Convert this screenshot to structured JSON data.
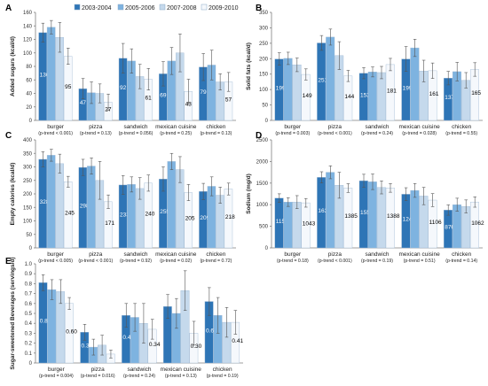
{
  "legend": [
    "2003-2004",
    "2005-2006",
    "2007-2008",
    "2009-2010"
  ],
  "colors": [
    "#2e75b6",
    "#7eb3e0",
    "#c5d9ec",
    "#f5f8fc"
  ],
  "bar_label_colors": [
    "#ffffff",
    "#ffffff",
    "#000000",
    "#000000"
  ],
  "chart_data": [
    {
      "type": "bar",
      "panel": "A",
      "ylabel": "Added sugars (kcal/d)",
      "ylim": [
        0,
        160
      ],
      "yticks": [
        "0",
        "20",
        "40",
        "60",
        "80",
        "100",
        "120",
        "140",
        "160"
      ],
      "categories": [
        "burger",
        "pizza",
        "sandwich",
        "mexican cuisine",
        "chicken"
      ],
      "trends": [
        "(p-trend < 0.001)",
        "(p-trend = 0.13)",
        "(p-trend = 0.056)",
        "(p-trend = 0.25)",
        "(p-trend = 0.13)"
      ],
      "series": [
        {
          "name": "2003-2004",
          "values": [
            130,
            47,
            92,
            69,
            79
          ],
          "err": [
            14,
            15,
            22,
            18,
            20
          ]
        },
        {
          "name": "2005-2006",
          "values": [
            138,
            41,
            88,
            88,
            82
          ],
          "err": [
            10,
            16,
            18,
            20,
            22
          ]
        },
        {
          "name": "2007-2008",
          "values": [
            123,
            40,
            65,
            100,
            57
          ],
          "err": [
            22,
            14,
            18,
            28,
            12
          ]
        },
        {
          "name": "2009-2010",
          "values": [
            95,
            27,
            61,
            43,
            57
          ],
          "err": [
            12,
            12,
            16,
            18,
            14
          ]
        }
      ],
      "labels": [
        [
          "130",
          "",
          "",
          "95"
        ],
        [
          "47",
          "",
          "",
          "27"
        ],
        [
          "92",
          "",
          "",
          "61"
        ],
        [
          "69",
          "",
          "",
          "43"
        ],
        [
          "79",
          "",
          "",
          "57"
        ]
      ]
    },
    {
      "type": "bar",
      "panel": "B",
      "ylabel": "Solid fats (kcal/d)",
      "ylim": [
        0,
        350
      ],
      "yticks": [
        "0",
        "50",
        "100",
        "150",
        "200",
        "250",
        "300",
        "350"
      ],
      "categories": [
        "burger",
        "pizza",
        "sandwich",
        "mexican cuisine",
        "chicken"
      ],
      "trends": [
        "(p-trend = 0.003)",
        "(p-trend < 0.001)",
        "(p-trend = 0.24)",
        "(p-trend = 0.028)",
        "(p-trend = 0.55)"
      ],
      "series": [
        {
          "name": "2003-2004",
          "values": [
            199,
            251,
            153,
            199,
            137
          ],
          "err": [
            20,
            24,
            18,
            40,
            22
          ]
        },
        {
          "name": "2005-2006",
          "values": [
            201,
            270,
            157,
            235,
            158
          ],
          "err": [
            20,
            26,
            16,
            28,
            30
          ]
        },
        {
          "name": "2007-2008",
          "values": [
            180,
            210,
            155,
            160,
            130
          ],
          "err": [
            22,
            45,
            20,
            35,
            25
          ]
        },
        {
          "name": "2009-2010",
          "values": [
            149,
            144,
            181,
            161,
            165
          ],
          "err": [
            18,
            18,
            20,
            25,
            22
          ]
        }
      ],
      "labels": [
        [
          "199",
          "",
          "",
          "149"
        ],
        [
          "251",
          "",
          "",
          "144"
        ],
        [
          "153",
          "",
          "",
          "181"
        ],
        [
          "199",
          "",
          "",
          "161"
        ],
        [
          "137",
          "",
          "",
          "165"
        ]
      ]
    },
    {
      "type": "bar",
      "panel": "C",
      "ylabel": "Empty calories (kcal/d)",
      "ylim": [
        0,
        400
      ],
      "yticks": [
        "0",
        "50",
        "100",
        "150",
        "200",
        "250",
        "300",
        "350",
        "400"
      ],
      "categories": [
        "burger",
        "pizza",
        "sandwich",
        "mexican cuisine",
        "chicken"
      ],
      "trends": [
        "(p-trend < 0.005)",
        "(p-trend < 0.001)",
        "(p-trend = 0.92)",
        "(p-trend = 0.02)",
        "(p-trend = 0.72)"
      ],
      "series": [
        {
          "name": "2003-2004",
          "values": [
            328,
            298,
            233,
            255,
            209
          ],
          "err": [
            28,
            30,
            35,
            45,
            30
          ]
        },
        {
          "name": "2005-2006",
          "values": [
            343,
            303,
            235,
            320,
            228
          ],
          "err": [
            22,
            30,
            28,
            30,
            35
          ]
        },
        {
          "name": "2007-2008",
          "values": [
            312,
            250,
            220,
            290,
            195
          ],
          "err": [
            35,
            70,
            40,
            48,
            30
          ]
        },
        {
          "name": "2009-2010",
          "values": [
            245,
            171,
            240,
            205,
            218
          ],
          "err": [
            20,
            25,
            30,
            30,
            22
          ]
        }
      ],
      "labels": [
        [
          "328",
          "",
          "",
          "245"
        ],
        [
          "298",
          "",
          "",
          "171"
        ],
        [
          "233",
          "",
          "",
          "240"
        ],
        [
          "255",
          "",
          "",
          "205"
        ],
        [
          "209",
          "",
          "",
          "218"
        ]
      ]
    },
    {
      "type": "bar",
      "panel": "D",
      "ylabel": "Sodium (mg/d)",
      "ylim": [
        0,
        2500
      ],
      "yticks": [
        "0",
        "500",
        "1000",
        "1500",
        "2000",
        "2500"
      ],
      "categories": [
        "burger",
        "pizza",
        "sandwich",
        "mexican cuisine",
        "chicken"
      ],
      "trends": [
        "(p-trend = 0.18)",
        "(p-trend < 0.001)",
        "(p-trend = 0.19)",
        "(p-trend = 0.51)",
        "(p-trend = 0.14)"
      ],
      "series": [
        {
          "name": "2003-2004",
          "values": [
            1152,
            1632,
            1554,
            1242,
            876
          ],
          "err": [
            100,
            130,
            150,
            150,
            120
          ]
        },
        {
          "name": "2005-2006",
          "values": [
            1060,
            1750,
            1530,
            1330,
            1000
          ],
          "err": [
            100,
            150,
            180,
            160,
            150
          ]
        },
        {
          "name": "2007-2008",
          "values": [
            1060,
            1450,
            1400,
            1200,
            960
          ],
          "err": [
            150,
            300,
            150,
            200,
            150
          ]
        },
        {
          "name": "2009-2010",
          "values": [
            1043,
            1385,
            1388,
            1106,
            1062
          ],
          "err": [
            100,
            100,
            100,
            150,
            120
          ]
        }
      ],
      "labels": [
        [
          "1152",
          "",
          "",
          "1043"
        ],
        [
          "1632",
          "",
          "",
          "1385"
        ],
        [
          "1554",
          "",
          "",
          "1388"
        ],
        [
          "1242",
          "",
          "",
          "1106"
        ],
        [
          "876",
          "",
          "",
          "1062"
        ]
      ]
    },
    {
      "type": "bar",
      "panel": "E",
      "ylabel": "Sugar-sweetened Beverages (servings/d)",
      "ylim": [
        0,
        1
      ],
      "yticks": [
        "0",
        "0.1",
        "0.2",
        "0.3",
        "0.4",
        "0.5",
        "0.6",
        "0.7",
        "0.8",
        "0.9",
        "1.0"
      ],
      "categories": [
        "burger",
        "pizza",
        "sandwich",
        "mexican cuisine",
        "chicken"
      ],
      "trends": [
        "(p-trend = 0.004)",
        "(p-trend = 0.016)",
        "(p-trend = 0.24)",
        "(p-trend = 0.13)",
        "(p-trend = 0.19)"
      ],
      "series": [
        {
          "name": "2003-2004",
          "values": [
            0.81,
            0.31,
            0.48,
            0.57,
            0.62
          ],
          "err": [
            0.08,
            0.08,
            0.12,
            0.12,
            0.14
          ]
        },
        {
          "name": "2005-2006",
          "values": [
            0.74,
            0.16,
            0.46,
            0.5,
            0.48
          ],
          "err": [
            0.1,
            0.08,
            0.14,
            0.15,
            0.18
          ]
        },
        {
          "name": "2007-2008",
          "values": [
            0.72,
            0.18,
            0.4,
            0.73,
            0.41
          ],
          "err": [
            0.12,
            0.1,
            0.2,
            0.2,
            0.15
          ]
        },
        {
          "name": "2009-2010",
          "values": [
            0.6,
            0.09,
            0.34,
            0.3,
            0.41
          ],
          "err": [
            0.06,
            0.04,
            0.1,
            0.12,
            0.12
          ]
        }
      ],
      "labels": [
        [
          "0.81",
          "",
          "",
          "0.60"
        ],
        [
          "0.31",
          "",
          "",
          ""
        ],
        [
          "0.48",
          "",
          "",
          "0.34"
        ],
        [
          "",
          "",
          "",
          "0.30"
        ],
        [
          "0.62",
          "",
          "",
          "0.41"
        ]
      ]
    }
  ]
}
